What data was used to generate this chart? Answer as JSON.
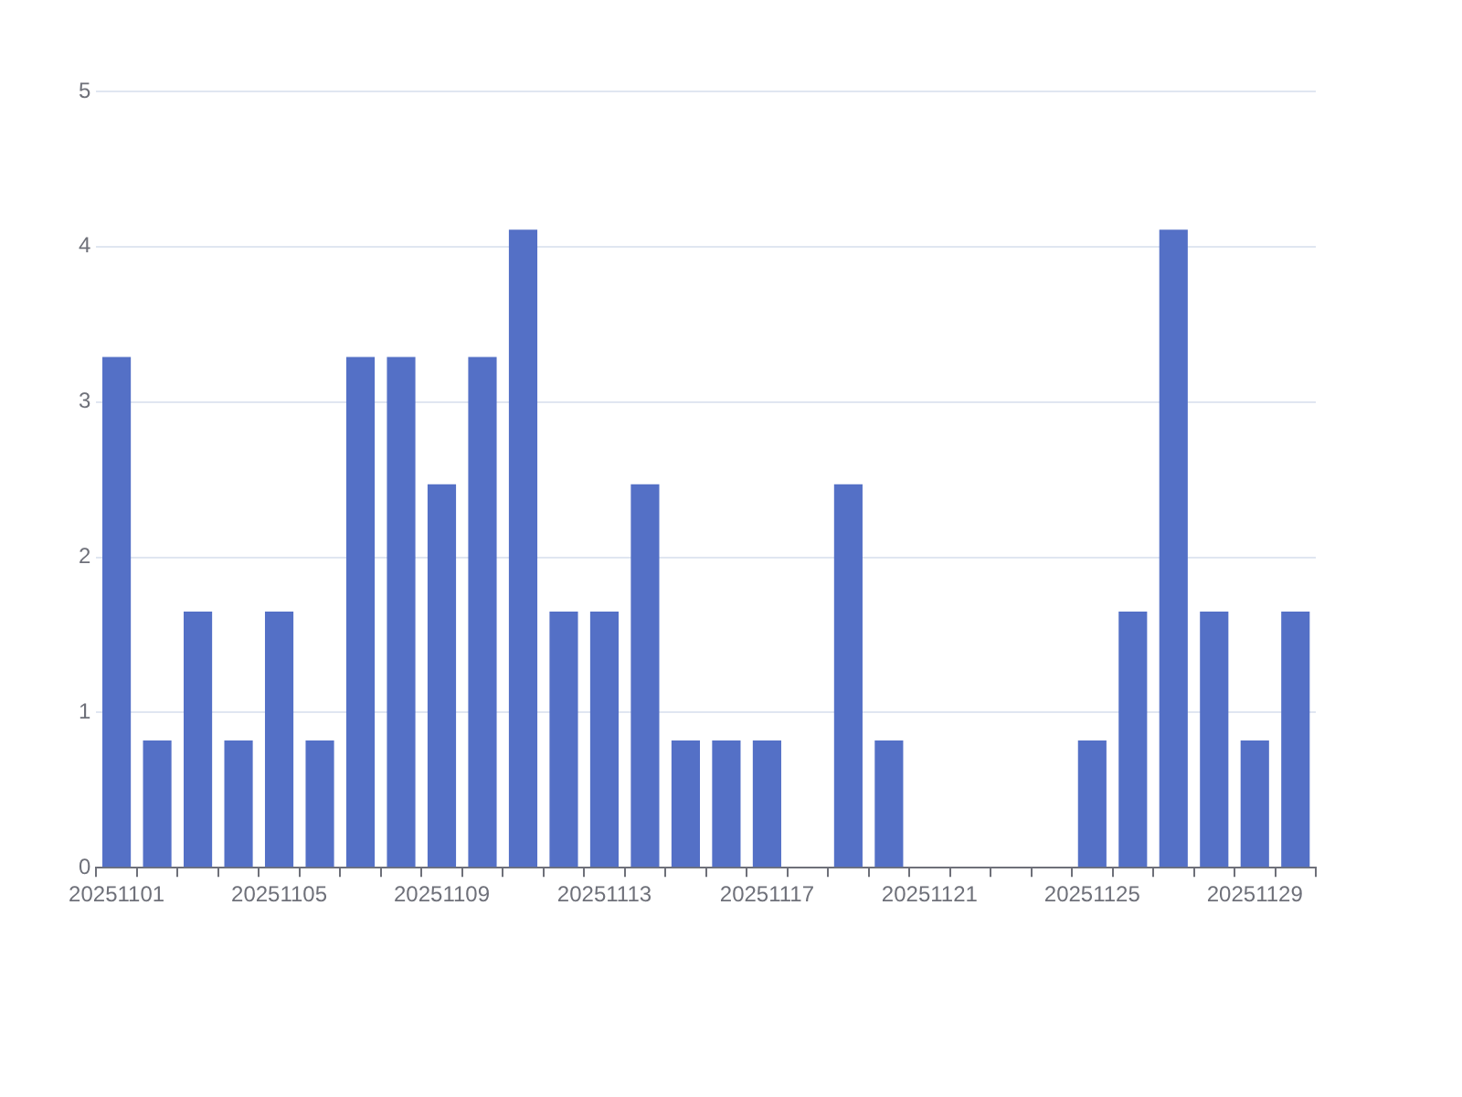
{
  "chart_data": {
    "type": "bar",
    "categories": [
      "20251101",
      null,
      null,
      null,
      "20251105",
      null,
      null,
      null,
      "20251109",
      null,
      null,
      null,
      "20251113",
      null,
      null,
      null,
      "20251117",
      null,
      null,
      null,
      "20251121",
      null,
      null,
      null,
      "20251125",
      null,
      null,
      null,
      "20251129",
      null
    ],
    "values": [
      3.29,
      0.82,
      1.65,
      0.82,
      1.65,
      0.82,
      3.29,
      3.29,
      2.47,
      3.29,
      4.11,
      1.65,
      1.65,
      2.47,
      0.82,
      0.82,
      0.82,
      0,
      2.47,
      0.82,
      0,
      0,
      0,
      0,
      0.82,
      1.65,
      4.11,
      1.65,
      0.82,
      1.65
    ],
    "color": "#5470c6",
    "ylim": [
      0,
      5
    ],
    "yticks": [
      0,
      1,
      2,
      3,
      4,
      5
    ],
    "grid": "y",
    "legend": false
  }
}
